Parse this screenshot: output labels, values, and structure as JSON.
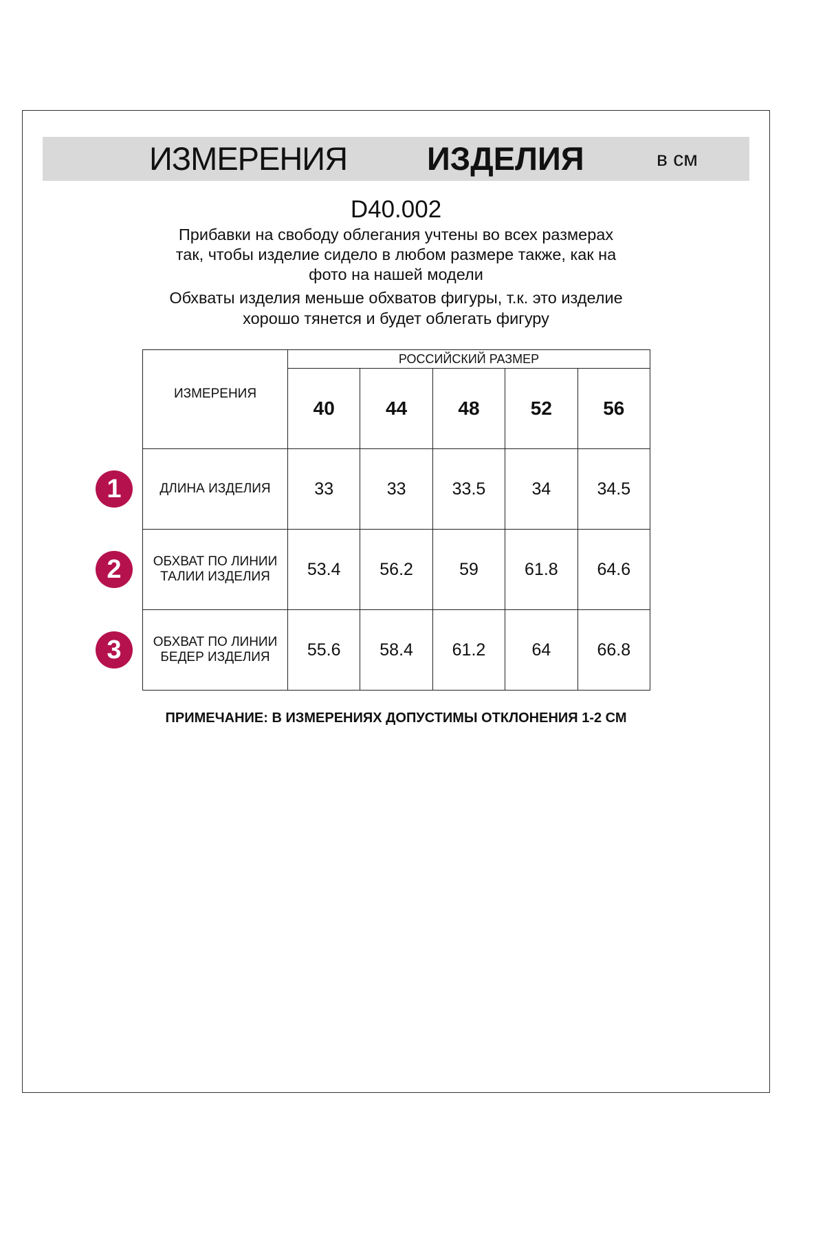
{
  "header": {
    "title_regular": "ИЗМЕРЕНИЯ",
    "title_bold": "ИЗДЕЛИЯ",
    "unit": "в см"
  },
  "product_code": "D40.002",
  "description": [
    "Прибавки на свободу облегания учтены во всех размерах",
    "так, чтобы изделие сидело в любом размере также, как на",
    "фото на нашей модели",
    "Обхваты изделия меньше обхватов фигуры, т.к. это изделие",
    "хорошо тянется и будет облегать фигуру"
  ],
  "table": {
    "measure_header": "ИЗМЕРЕНИЯ",
    "size_header": "РОССИЙСКИЙ РАЗМЕР",
    "sizes": [
      "40",
      "44",
      "48",
      "52",
      "56"
    ],
    "rows": [
      {
        "badge": "1",
        "label_lines": [
          "ДЛИНА ИЗДЕЛИЯ"
        ],
        "values": [
          "33",
          "33",
          "33.5",
          "34",
          "34.5"
        ]
      },
      {
        "badge": "2",
        "label_lines": [
          "ОБХВАТ ПО ЛИНИИ",
          "ТАЛИИ ИЗДЕЛИЯ"
        ],
        "values": [
          "53.4",
          "56.2",
          "59",
          "61.8",
          "64.6"
        ]
      },
      {
        "badge": "3",
        "label_lines": [
          "ОБХВАТ ПО ЛИНИИ",
          "БЕДЕР ИЗДЕЛИЯ"
        ],
        "values": [
          "55.6",
          "58.4",
          "61.2",
          "64",
          "66.8"
        ]
      }
    ]
  },
  "note": "ПРИМЕЧАНИЕ: В ИЗМЕРЕНИЯХ ДОПУСТИМЫ ОТКЛОНЕНИЯ 1-2 СМ",
  "colors": {
    "badge": "#b5124d",
    "band": "#d9d9d9"
  }
}
